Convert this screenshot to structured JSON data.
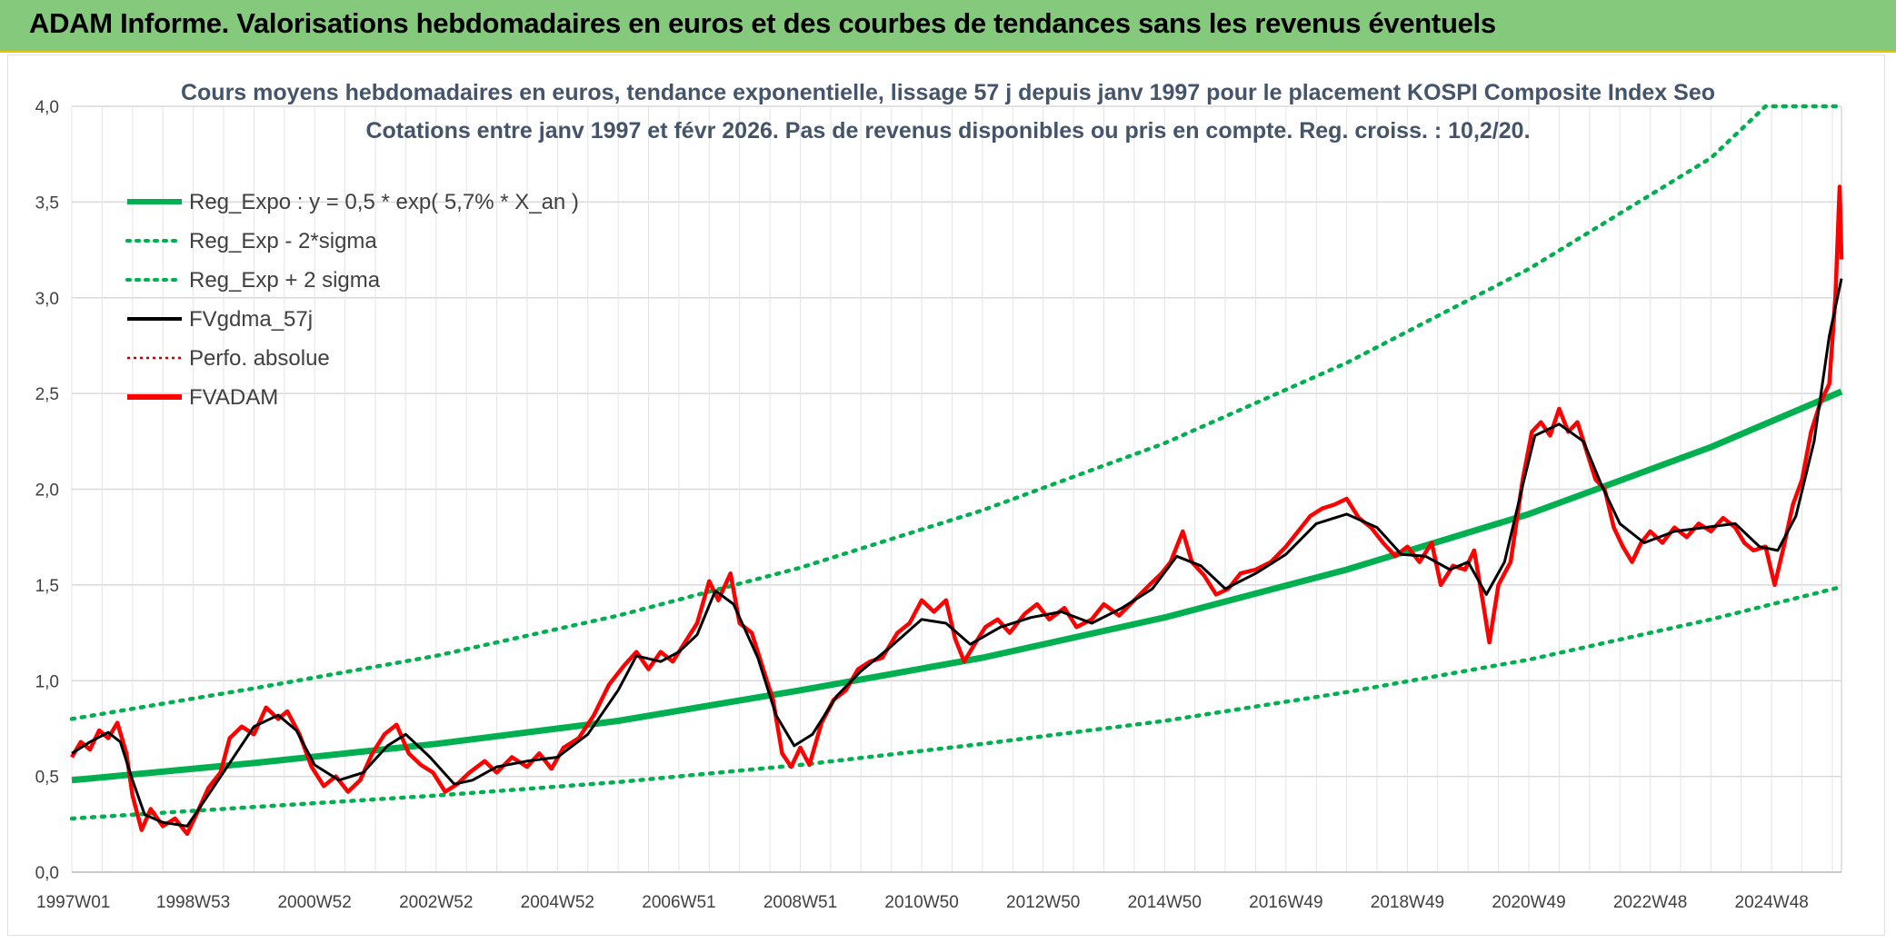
{
  "banner": {
    "title": "ADAM Informe. Valorisations hebdomadaires en euros et des courbes de tendances sans les revenus éventuels"
  },
  "colors": {
    "banner_bg": "#84c97c",
    "banner_border": "#f2c200",
    "trend": "#00b050",
    "smooth": "#000000",
    "price": "#ff0000",
    "grid": "#d9d9d9"
  },
  "chart_data": {
    "type": "line",
    "subtitle_lines": [
      "Cours moyens hebdomadaires en euros, tendance exponentielle, lissage 57 j depuis janv 1997 pour le placement KOSPI Composite Index Seo",
      "Cotations entre janv 1997 et févr 2026. Pas de revenus disponibles ou pris en compte. Reg. croiss. : 10,2/20."
    ],
    "x_range": [
      1997.0,
      2026.15
    ],
    "ylim": [
      0,
      4
    ],
    "y_ticks": [
      "0,0",
      "0,5",
      "1,0",
      "1,5",
      "2,0",
      "2,5",
      "3,0",
      "3,5",
      "4,0"
    ],
    "x_ticks": [
      {
        "label": "1997W01",
        "x": 1997.0
      },
      {
        "label": "1998W53",
        "x": 1999.0
      },
      {
        "label": "2000W52",
        "x": 2001.0
      },
      {
        "label": "2002W52",
        "x": 2003.0
      },
      {
        "label": "2004W52",
        "x": 2005.0
      },
      {
        "label": "2006W51",
        "x": 2007.0
      },
      {
        "label": "2008W51",
        "x": 2009.0
      },
      {
        "label": "2010W50",
        "x": 2011.0
      },
      {
        "label": "2012W50",
        "x": 2013.0
      },
      {
        "label": "2014W50",
        "x": 2015.0
      },
      {
        "label": "2016W49",
        "x": 2017.0
      },
      {
        "label": "2018W49",
        "x": 2019.0
      },
      {
        "label": "2020W49",
        "x": 2021.0
      },
      {
        "label": "2022W48",
        "x": 2023.0
      },
      {
        "label": "2024W48",
        "x": 2025.0
      }
    ],
    "grid": true,
    "legend_position": "top-left",
    "legend": [
      {
        "label": "Reg_Expo : y = 0,5 * exp( 5,7% *  X_an )",
        "color": "#00b050",
        "style": "solid-thick"
      },
      {
        "label": "Reg_Exp - 2*sigma",
        "color": "#00b050",
        "style": "dotted"
      },
      {
        "label": "Reg_Exp + 2 sigma",
        "color": "#00b050",
        "style": "dotted"
      },
      {
        "label": "FVgdma_57j",
        "color": "#000000",
        "style": "solid"
      },
      {
        "label": "Perfo. absolue",
        "color": "#c00000",
        "style": "dotted-thin"
      },
      {
        "label": "FVADAM",
        "color": "#ff0000",
        "style": "solid-thick"
      }
    ],
    "series": [
      {
        "name": "Reg_Expo : y = 0,5 * exp( 5,7% *  X_an )",
        "points": [
          [
            1997.0,
            0.48
          ],
          [
            2000.0,
            0.57
          ],
          [
            2003.0,
            0.67
          ],
          [
            2006.0,
            0.79
          ],
          [
            2009.0,
            0.95
          ],
          [
            2012.0,
            1.12
          ],
          [
            2015.0,
            1.33
          ],
          [
            2018.0,
            1.58
          ],
          [
            2021.0,
            1.87
          ],
          [
            2024.0,
            2.22
          ],
          [
            2026.15,
            2.51
          ]
        ]
      },
      {
        "name": "Reg_Exp - 2*sigma",
        "points": [
          [
            1997.0,
            0.28
          ],
          [
            2000.0,
            0.34
          ],
          [
            2003.0,
            0.4
          ],
          [
            2006.0,
            0.47
          ],
          [
            2009.0,
            0.56
          ],
          [
            2012.0,
            0.67
          ],
          [
            2015.0,
            0.79
          ],
          [
            2018.0,
            0.94
          ],
          [
            2021.0,
            1.11
          ],
          [
            2024.0,
            1.32
          ],
          [
            2026.15,
            1.49
          ]
        ]
      },
      {
        "name": "Reg_Exp + 2 sigma",
        "points": [
          [
            1997.0,
            0.8
          ],
          [
            2000.0,
            0.96
          ],
          [
            2003.0,
            1.13
          ],
          [
            2006.0,
            1.34
          ],
          [
            2009.0,
            1.59
          ],
          [
            2012.0,
            1.89
          ],
          [
            2015.0,
            2.24
          ],
          [
            2018.0,
            2.66
          ],
          [
            2021.0,
            3.15
          ],
          [
            2024.0,
            3.73
          ],
          [
            2024.9,
            4.0
          ],
          [
            2026.15,
            4.0
          ]
        ]
      },
      {
        "name": "FVgdma_57j",
        "points": [
          [
            1997.0,
            0.62
          ],
          [
            1997.3,
            0.68
          ],
          [
            1997.6,
            0.73
          ],
          [
            1997.8,
            0.68
          ],
          [
            1998.0,
            0.48
          ],
          [
            1998.2,
            0.3
          ],
          [
            1998.5,
            0.26
          ],
          [
            1998.9,
            0.24
          ],
          [
            1999.2,
            0.38
          ],
          [
            1999.6,
            0.57
          ],
          [
            2000.0,
            0.76
          ],
          [
            2000.4,
            0.82
          ],
          [
            2000.7,
            0.74
          ],
          [
            2001.0,
            0.56
          ],
          [
            2001.4,
            0.48
          ],
          [
            2001.8,
            0.52
          ],
          [
            2002.2,
            0.66
          ],
          [
            2002.5,
            0.72
          ],
          [
            2002.9,
            0.6
          ],
          [
            2003.3,
            0.46
          ],
          [
            2003.6,
            0.48
          ],
          [
            2004.0,
            0.55
          ],
          [
            2004.5,
            0.58
          ],
          [
            2005.0,
            0.6
          ],
          [
            2005.5,
            0.72
          ],
          [
            2006.0,
            0.95
          ],
          [
            2006.3,
            1.13
          ],
          [
            2006.7,
            1.1
          ],
          [
            2007.0,
            1.15
          ],
          [
            2007.3,
            1.24
          ],
          [
            2007.6,
            1.47
          ],
          [
            2007.9,
            1.4
          ],
          [
            2008.3,
            1.12
          ],
          [
            2008.6,
            0.82
          ],
          [
            2008.9,
            0.66
          ],
          [
            2009.2,
            0.72
          ],
          [
            2009.6,
            0.92
          ],
          [
            2010.0,
            1.05
          ],
          [
            2010.5,
            1.18
          ],
          [
            2011.0,
            1.32
          ],
          [
            2011.4,
            1.3
          ],
          [
            2011.8,
            1.19
          ],
          [
            2012.3,
            1.28
          ],
          [
            2012.8,
            1.33
          ],
          [
            2013.3,
            1.36
          ],
          [
            2013.8,
            1.3
          ],
          [
            2014.3,
            1.38
          ],
          [
            2014.8,
            1.48
          ],
          [
            2015.2,
            1.65
          ],
          [
            2015.6,
            1.6
          ],
          [
            2016.0,
            1.48
          ],
          [
            2016.5,
            1.56
          ],
          [
            2017.0,
            1.66
          ],
          [
            2017.5,
            1.82
          ],
          [
            2018.0,
            1.87
          ],
          [
            2018.5,
            1.8
          ],
          [
            2018.9,
            1.66
          ],
          [
            2019.3,
            1.65
          ],
          [
            2019.7,
            1.58
          ],
          [
            2020.0,
            1.62
          ],
          [
            2020.3,
            1.45
          ],
          [
            2020.6,
            1.62
          ],
          [
            2020.9,
            2.02
          ],
          [
            2021.1,
            2.28
          ],
          [
            2021.5,
            2.34
          ],
          [
            2021.9,
            2.25
          ],
          [
            2022.2,
            2.02
          ],
          [
            2022.5,
            1.82
          ],
          [
            2022.9,
            1.72
          ],
          [
            2023.4,
            1.78
          ],
          [
            2023.9,
            1.8
          ],
          [
            2024.4,
            1.82
          ],
          [
            2024.8,
            1.7
          ],
          [
            2025.1,
            1.68
          ],
          [
            2025.4,
            1.86
          ],
          [
            2025.7,
            2.25
          ],
          [
            2025.95,
            2.8
          ],
          [
            2026.15,
            3.1
          ]
        ]
      },
      {
        "name": "FVADAM",
        "points": [
          [
            1997.0,
            0.6
          ],
          [
            1997.15,
            0.68
          ],
          [
            1997.3,
            0.64
          ],
          [
            1997.45,
            0.74
          ],
          [
            1997.6,
            0.7
          ],
          [
            1997.75,
            0.78
          ],
          [
            1997.9,
            0.62
          ],
          [
            1998.0,
            0.4
          ],
          [
            1998.15,
            0.22
          ],
          [
            1998.3,
            0.33
          ],
          [
            1998.5,
            0.24
          ],
          [
            1998.7,
            0.28
          ],
          [
            1998.9,
            0.2
          ],
          [
            1999.05,
            0.3
          ],
          [
            1999.25,
            0.44
          ],
          [
            1999.45,
            0.52
          ],
          [
            1999.6,
            0.7
          ],
          [
            1999.8,
            0.76
          ],
          [
            2000.0,
            0.72
          ],
          [
            2000.2,
            0.86
          ],
          [
            2000.4,
            0.8
          ],
          [
            2000.55,
            0.84
          ],
          [
            2000.75,
            0.72
          ],
          [
            2000.95,
            0.55
          ],
          [
            2001.15,
            0.45
          ],
          [
            2001.35,
            0.5
          ],
          [
            2001.55,
            0.42
          ],
          [
            2001.75,
            0.48
          ],
          [
            2001.95,
            0.62
          ],
          [
            2002.15,
            0.72
          ],
          [
            2002.35,
            0.77
          ],
          [
            2002.55,
            0.62
          ],
          [
            2002.75,
            0.56
          ],
          [
            2002.95,
            0.52
          ],
          [
            2003.15,
            0.42
          ],
          [
            2003.35,
            0.46
          ],
          [
            2003.55,
            0.52
          ],
          [
            2003.8,
            0.58
          ],
          [
            2004.0,
            0.52
          ],
          [
            2004.25,
            0.6
          ],
          [
            2004.5,
            0.55
          ],
          [
            2004.7,
            0.62
          ],
          [
            2004.9,
            0.54
          ],
          [
            2005.1,
            0.65
          ],
          [
            2005.35,
            0.7
          ],
          [
            2005.6,
            0.82
          ],
          [
            2005.85,
            0.98
          ],
          [
            2006.1,
            1.08
          ],
          [
            2006.3,
            1.15
          ],
          [
            2006.5,
            1.06
          ],
          [
            2006.7,
            1.15
          ],
          [
            2006.9,
            1.1
          ],
          [
            2007.1,
            1.2
          ],
          [
            2007.3,
            1.3
          ],
          [
            2007.5,
            1.52
          ],
          [
            2007.65,
            1.42
          ],
          [
            2007.85,
            1.56
          ],
          [
            2008.0,
            1.3
          ],
          [
            2008.2,
            1.25
          ],
          [
            2008.4,
            1.05
          ],
          [
            2008.55,
            0.9
          ],
          [
            2008.7,
            0.62
          ],
          [
            2008.85,
            0.55
          ],
          [
            2009.0,
            0.65
          ],
          [
            2009.15,
            0.56
          ],
          [
            2009.35,
            0.78
          ],
          [
            2009.55,
            0.9
          ],
          [
            2009.75,
            0.95
          ],
          [
            2009.95,
            1.06
          ],
          [
            2010.15,
            1.1
          ],
          [
            2010.35,
            1.12
          ],
          [
            2010.6,
            1.25
          ],
          [
            2010.8,
            1.3
          ],
          [
            2011.0,
            1.42
          ],
          [
            2011.2,
            1.36
          ],
          [
            2011.4,
            1.42
          ],
          [
            2011.55,
            1.22
          ],
          [
            2011.7,
            1.1
          ],
          [
            2011.85,
            1.18
          ],
          [
            2012.05,
            1.28
          ],
          [
            2012.25,
            1.32
          ],
          [
            2012.45,
            1.25
          ],
          [
            2012.7,
            1.35
          ],
          [
            2012.9,
            1.4
          ],
          [
            2013.1,
            1.32
          ],
          [
            2013.35,
            1.38
          ],
          [
            2013.55,
            1.28
          ],
          [
            2013.8,
            1.32
          ],
          [
            2014.0,
            1.4
          ],
          [
            2014.25,
            1.34
          ],
          [
            2014.5,
            1.42
          ],
          [
            2014.75,
            1.5
          ],
          [
            2014.95,
            1.56
          ],
          [
            2015.1,
            1.62
          ],
          [
            2015.3,
            1.78
          ],
          [
            2015.45,
            1.62
          ],
          [
            2015.65,
            1.55
          ],
          [
            2015.85,
            1.45
          ],
          [
            2016.05,
            1.48
          ],
          [
            2016.25,
            1.56
          ],
          [
            2016.5,
            1.58
          ],
          [
            2016.75,
            1.62
          ],
          [
            2017.0,
            1.7
          ],
          [
            2017.2,
            1.78
          ],
          [
            2017.4,
            1.86
          ],
          [
            2017.6,
            1.9
          ],
          [
            2017.8,
            1.92
          ],
          [
            2018.0,
            1.95
          ],
          [
            2018.2,
            1.85
          ],
          [
            2018.4,
            1.8
          ],
          [
            2018.6,
            1.72
          ],
          [
            2018.8,
            1.65
          ],
          [
            2019.0,
            1.7
          ],
          [
            2019.2,
            1.62
          ],
          [
            2019.4,
            1.72
          ],
          [
            2019.55,
            1.5
          ],
          [
            2019.75,
            1.6
          ],
          [
            2019.95,
            1.58
          ],
          [
            2020.1,
            1.68
          ],
          [
            2020.25,
            1.4
          ],
          [
            2020.35,
            1.2
          ],
          [
            2020.5,
            1.5
          ],
          [
            2020.7,
            1.62
          ],
          [
            2020.9,
            2.05
          ],
          [
            2021.05,
            2.3
          ],
          [
            2021.2,
            2.35
          ],
          [
            2021.35,
            2.28
          ],
          [
            2021.5,
            2.42
          ],
          [
            2021.65,
            2.3
          ],
          [
            2021.8,
            2.35
          ],
          [
            2021.95,
            2.2
          ],
          [
            2022.1,
            2.05
          ],
          [
            2022.25,
            2.0
          ],
          [
            2022.4,
            1.8
          ],
          [
            2022.55,
            1.7
          ],
          [
            2022.7,
            1.62
          ],
          [
            2022.85,
            1.72
          ],
          [
            2023.0,
            1.78
          ],
          [
            2023.2,
            1.72
          ],
          [
            2023.4,
            1.8
          ],
          [
            2023.6,
            1.75
          ],
          [
            2023.8,
            1.82
          ],
          [
            2024.0,
            1.78
          ],
          [
            2024.2,
            1.85
          ],
          [
            2024.4,
            1.8
          ],
          [
            2024.55,
            1.72
          ],
          [
            2024.7,
            1.68
          ],
          [
            2024.9,
            1.7
          ],
          [
            2025.05,
            1.5
          ],
          [
            2025.2,
            1.7
          ],
          [
            2025.35,
            1.92
          ],
          [
            2025.5,
            2.05
          ],
          [
            2025.65,
            2.3
          ],
          [
            2025.8,
            2.45
          ],
          [
            2025.95,
            2.55
          ],
          [
            2026.05,
            3.0
          ],
          [
            2026.12,
            3.58
          ],
          [
            2026.15,
            3.2
          ]
        ]
      }
    ]
  }
}
